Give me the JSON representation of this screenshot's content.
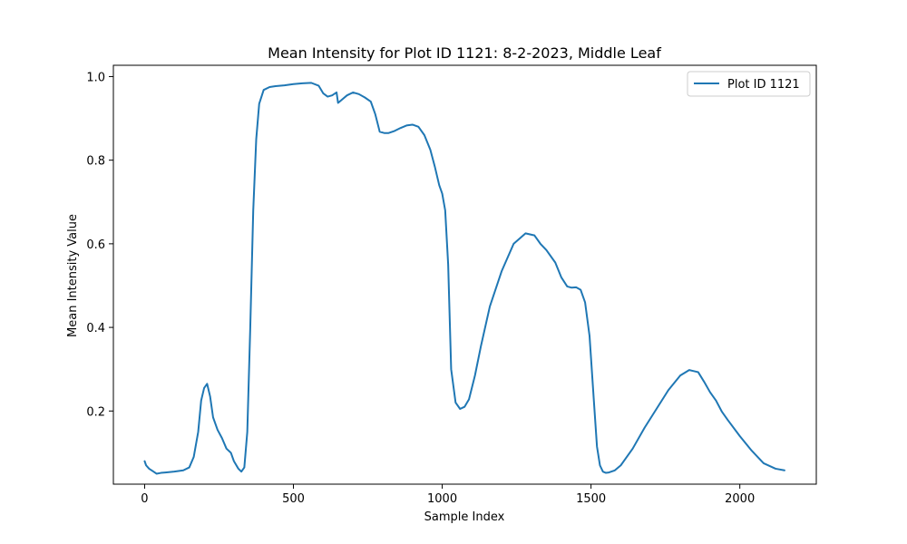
{
  "chart_data": {
    "type": "line",
    "title": "Mean Intensity for Plot ID 1121: 8-2-2023, Middle Leaf",
    "xlabel": "Sample Index",
    "ylabel": "Mean Intensity Value",
    "xlim": [
      -105,
      2257
    ],
    "ylim": [
      0.025,
      1.027
    ],
    "xticks": [
      0,
      500,
      1000,
      1500,
      2000
    ],
    "xtick_labels": [
      "0",
      "500",
      "1000",
      "1500",
      "2000"
    ],
    "yticks": [
      0.2,
      0.4,
      0.6,
      0.8,
      1.0
    ],
    "ytick_labels": [
      "0.2",
      "0.4",
      "0.6",
      "0.8",
      "1.0"
    ],
    "grid": false,
    "legend_placement": "top-right",
    "series": [
      {
        "name": "Plot ID 1121",
        "color": "#1f77b4",
        "x": [
          0,
          5,
          15,
          30,
          40,
          55,
          70,
          100,
          130,
          150,
          165,
          180,
          190,
          200,
          210,
          220,
          230,
          245,
          260,
          275,
          290,
          300,
          315,
          325,
          335,
          345,
          355,
          365,
          375,
          385,
          400,
          420,
          440,
          470,
          500,
          530,
          560,
          585,
          600,
          615,
          630,
          645,
          650,
          660,
          680,
          700,
          720,
          740,
          760,
          775,
          790,
          805,
          820,
          840,
          860,
          880,
          900,
          920,
          940,
          960,
          975,
          990,
          1000,
          1010,
          1020,
          1030,
          1045,
          1060,
          1075,
          1090,
          1110,
          1130,
          1160,
          1200,
          1240,
          1280,
          1310,
          1330,
          1350,
          1380,
          1400,
          1420,
          1435,
          1450,
          1465,
          1480,
          1495,
          1510,
          1520,
          1530,
          1540,
          1550,
          1560,
          1580,
          1600,
          1640,
          1680,
          1720,
          1760,
          1800,
          1830,
          1860,
          1880,
          1900,
          1920,
          1940,
          1960,
          2000,
          2040,
          2080,
          2120,
          2150
        ],
        "y": [
          0.08,
          0.07,
          0.062,
          0.055,
          0.05,
          0.052,
          0.053,
          0.055,
          0.058,
          0.065,
          0.09,
          0.15,
          0.225,
          0.255,
          0.265,
          0.235,
          0.185,
          0.155,
          0.135,
          0.11,
          0.1,
          0.08,
          0.062,
          0.055,
          0.065,
          0.15,
          0.4,
          0.68,
          0.85,
          0.935,
          0.968,
          0.975,
          0.977,
          0.979,
          0.982,
          0.984,
          0.985,
          0.978,
          0.96,
          0.952,
          0.955,
          0.962,
          0.937,
          0.943,
          0.955,
          0.962,
          0.958,
          0.95,
          0.94,
          0.91,
          0.868,
          0.865,
          0.865,
          0.87,
          0.877,
          0.883,
          0.885,
          0.88,
          0.86,
          0.825,
          0.785,
          0.74,
          0.72,
          0.68,
          0.55,
          0.3,
          0.22,
          0.205,
          0.21,
          0.228,
          0.285,
          0.355,
          0.45,
          0.535,
          0.6,
          0.625,
          0.62,
          0.6,
          0.585,
          0.555,
          0.52,
          0.498,
          0.495,
          0.496,
          0.49,
          0.46,
          0.38,
          0.22,
          0.115,
          0.07,
          0.055,
          0.052,
          0.053,
          0.058,
          0.07,
          0.11,
          0.16,
          0.205,
          0.25,
          0.285,
          0.298,
          0.293,
          0.27,
          0.245,
          0.225,
          0.198,
          0.178,
          0.14,
          0.105,
          0.075,
          0.062,
          0.058
        ]
      }
    ]
  }
}
